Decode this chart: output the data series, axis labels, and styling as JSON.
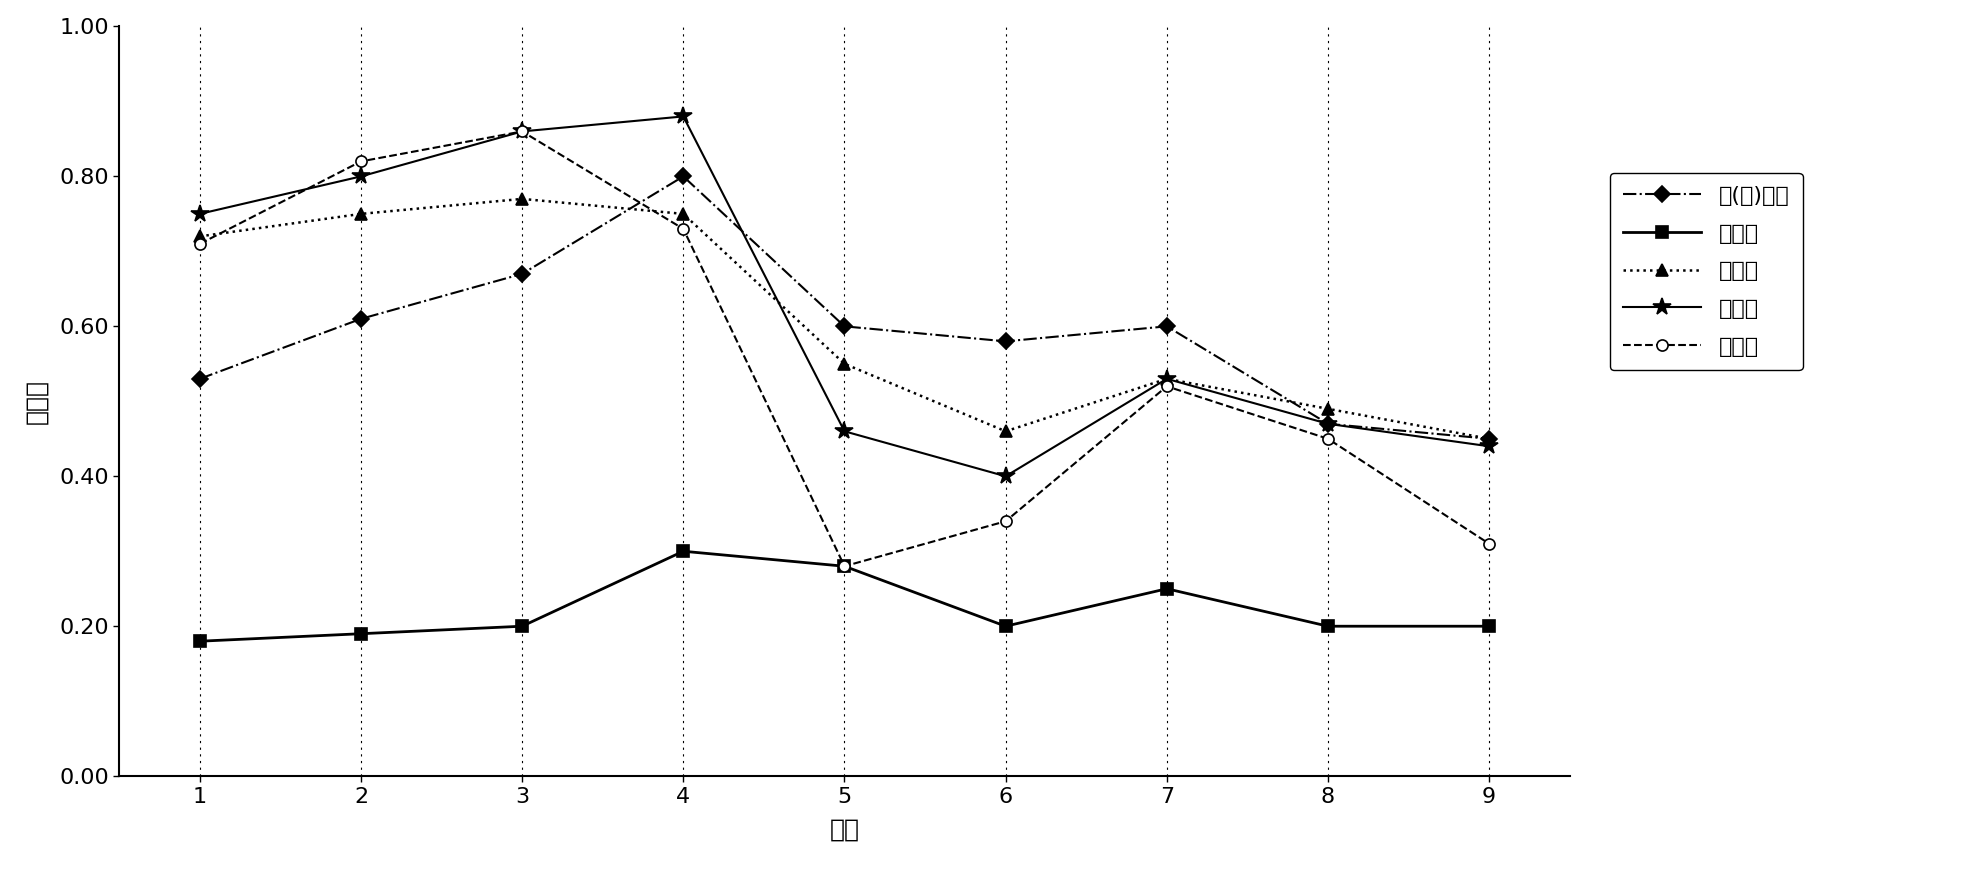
{
  "x": [
    1,
    2,
    3,
    4,
    5,
    6,
    7,
    8,
    9
  ],
  "series_order": [
    "白(绹)云母",
    "伊利石",
    "蒙脱石",
    "高岭石",
    "明矾石"
  ],
  "series": {
    "白(绹)云母": {
      "values": [
        0.53,
        0.61,
        0.67,
        0.8,
        0.6,
        0.58,
        0.6,
        0.47,
        0.45
      ],
      "linestyle": "-.",
      "marker": "D",
      "markersize": 8,
      "linewidth": 1.5,
      "fillstyle": "full"
    },
    "伊利石": {
      "values": [
        0.18,
        0.19,
        0.2,
        0.3,
        0.28,
        0.2,
        0.25,
        0.2,
        0.2
      ],
      "linestyle": "-",
      "marker": "s",
      "markersize": 8,
      "linewidth": 2.0,
      "fillstyle": "full"
    },
    "蒙脱石": {
      "values": [
        0.72,
        0.75,
        0.77,
        0.75,
        0.55,
        0.46,
        0.53,
        0.49,
        0.45
      ],
      "linestyle": ":",
      "marker": "^",
      "markersize": 8,
      "linewidth": 1.8,
      "fillstyle": "full"
    },
    "高岭石": {
      "values": [
        0.75,
        0.8,
        0.86,
        0.88,
        0.46,
        0.4,
        0.53,
        0.47,
        0.44
      ],
      "linestyle": "-",
      "marker": "*",
      "markersize": 13,
      "linewidth": 1.5,
      "fillstyle": "full"
    },
    "明矾石": {
      "values": [
        0.71,
        0.82,
        0.86,
        0.73,
        0.28,
        0.34,
        0.52,
        0.45,
        0.31
      ],
      "linestyle": "--",
      "marker": "o",
      "markersize": 8,
      "linewidth": 1.5,
      "fillstyle": "none"
    }
  },
  "xlabel": "波段",
  "ylabel": "反射率",
  "xlim": [
    0.5,
    9.5
  ],
  "ylim": [
    0.0,
    1.0
  ],
  "yticks": [
    0.0,
    0.2,
    0.4,
    0.6,
    0.8,
    1.0
  ],
  "xticks": [
    1,
    2,
    3,
    4,
    5,
    6,
    7,
    8,
    9
  ],
  "background_color": "#ffffff",
  "axis_fontsize": 18,
  "tick_fontsize": 16,
  "legend_fontsize": 16
}
